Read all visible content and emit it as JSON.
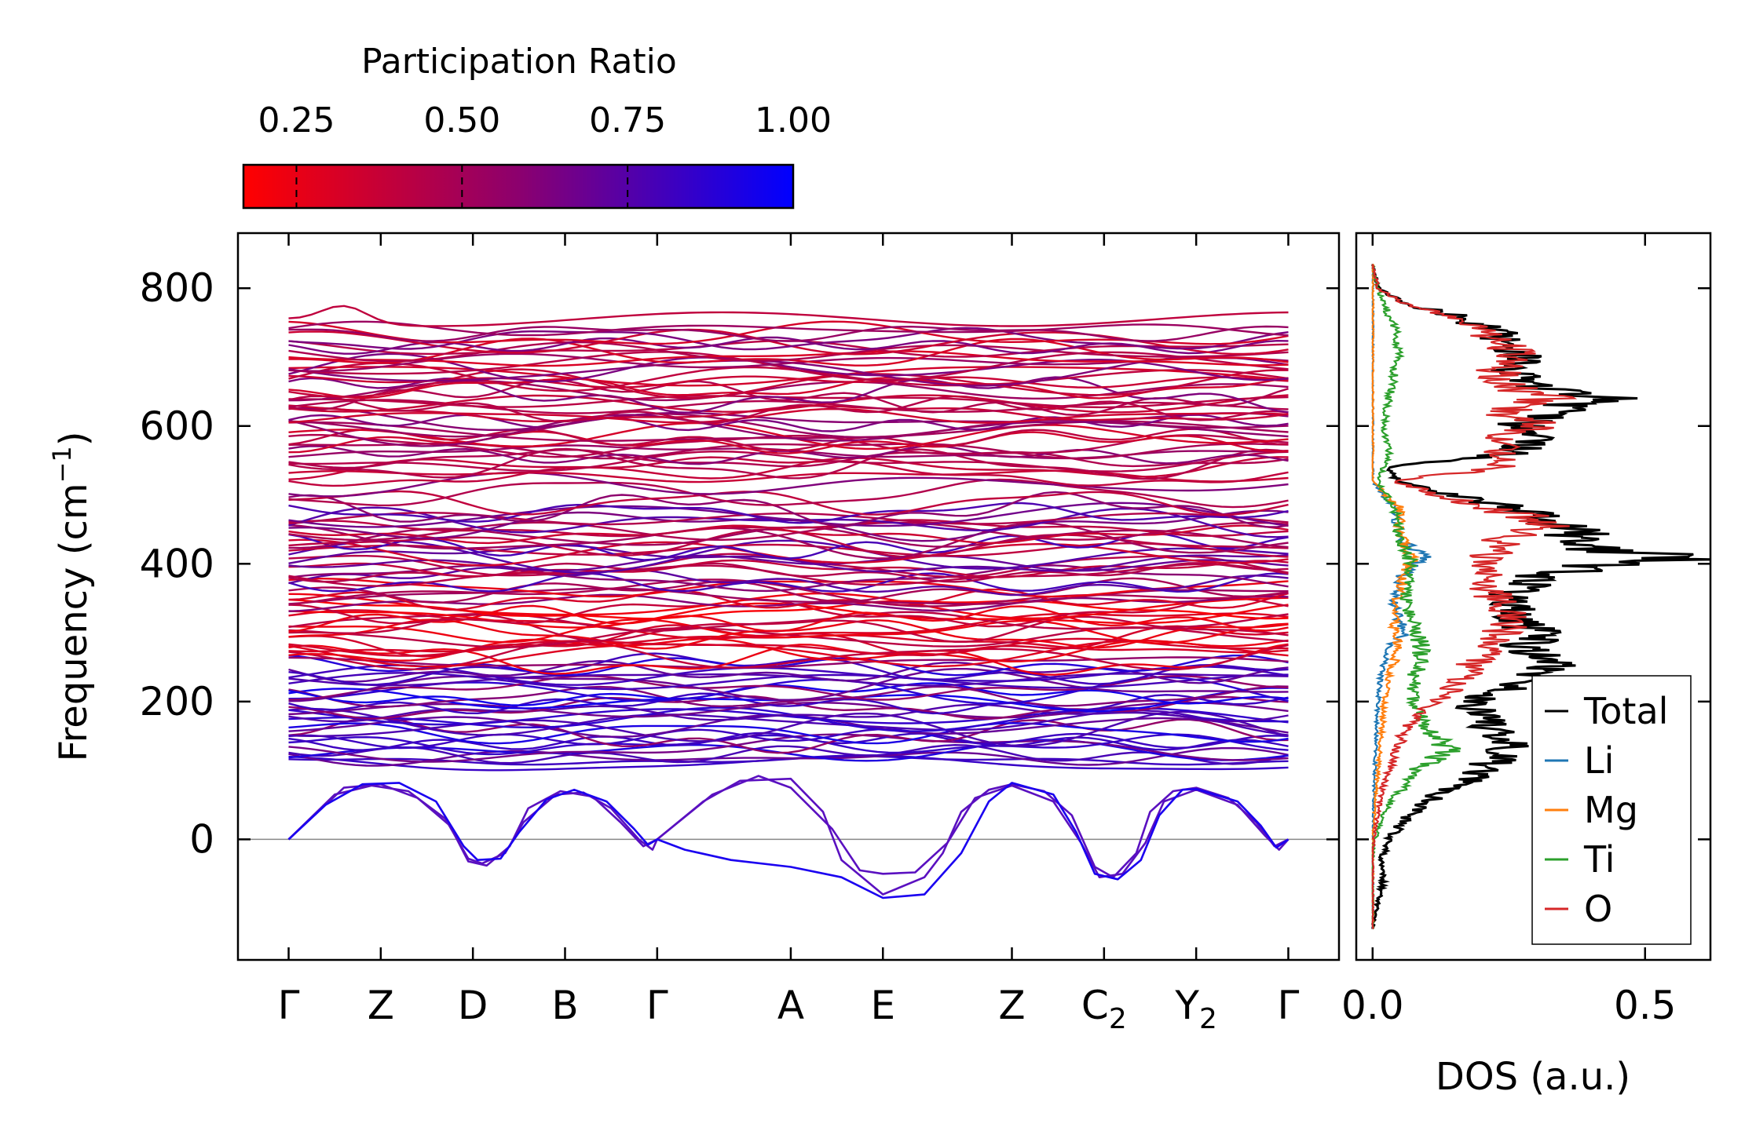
{
  "chart_data": [
    {
      "type": "colorbar",
      "title": "Participation Ratio",
      "range": [
        0.17,
        1.0
      ],
      "ticks": [
        {
          "value": 0.25,
          "label": "0.25"
        },
        {
          "value": 0.5,
          "label": "0.50"
        },
        {
          "value": 0.75,
          "label": "0.75"
        },
        {
          "value": 1.0,
          "label": "1.00"
        }
      ],
      "colors": {
        "low": "#ff0000",
        "mid": "#8c006e",
        "high": "#0000ff"
      }
    },
    {
      "type": "line",
      "title": "",
      "xlabel": "",
      "ylabel": "Frequency (cm",
      "ylabel_unit_sup": "−1",
      "ylabel_end": ")",
      "ylim": [
        -175,
        880
      ],
      "yticks": [
        0,
        200,
        400,
        600,
        800
      ],
      "zero_line": true,
      "high_symmetry_points": [
        {
          "label": "Γ",
          "sub": "",
          "x": 0
        },
        {
          "label": "Z",
          "sub": "",
          "x": 1
        },
        {
          "label": "D",
          "sub": "",
          "x": 2
        },
        {
          "label": "B",
          "sub": "",
          "x": 3
        },
        {
          "label": "Γ",
          "sub": "",
          "x": 4
        },
        {
          "label": "A",
          "sub": "",
          "x": 5.45
        },
        {
          "label": "E",
          "sub": "",
          "x": 6.45
        },
        {
          "label": "Z",
          "sub": "",
          "x": 7.85
        },
        {
          "label": "C",
          "sub": "2",
          "x": 8.85
        },
        {
          "label": "Y",
          "sub": "2",
          "x": 9.85
        },
        {
          "label": "Γ",
          "sub": "",
          "x": 10.85
        }
      ],
      "xlim": [
        -0.55,
        11.4
      ],
      "acoustic_branches": [
        {
          "name": "acoustic-1",
          "points": [
            [
              0,
              0
            ],
            [
              0.5,
              65
            ],
            [
              0.9,
              78
            ],
            [
              1.3,
              70
            ],
            [
              1.7,
              30
            ],
            [
              1.95,
              -28
            ],
            [
              2.1,
              -35
            ],
            [
              2.35,
              -20
            ],
            [
              2.55,
              25
            ],
            [
              2.9,
              65
            ],
            [
              3.2,
              68
            ],
            [
              3.5,
              45
            ],
            [
              3.8,
              0
            ],
            [
              3.95,
              -15
            ],
            [
              4.0,
              0
            ],
            [
              4.5,
              55
            ],
            [
              4.9,
              85
            ],
            [
              5.45,
              88
            ],
            [
              5.8,
              40
            ],
            [
              6.0,
              -30
            ],
            [
              6.45,
              -80
            ],
            [
              6.9,
              -55
            ],
            [
              7.1,
              -20
            ],
            [
              7.3,
              40
            ],
            [
              7.6,
              72
            ],
            [
              7.85,
              80
            ],
            [
              8.2,
              70
            ],
            [
              8.5,
              35
            ],
            [
              8.75,
              -40
            ],
            [
              8.95,
              -55
            ],
            [
              9.2,
              -20
            ],
            [
              9.35,
              40
            ],
            [
              9.6,
              70
            ],
            [
              9.85,
              75
            ],
            [
              10.2,
              60
            ],
            [
              10.5,
              25
            ],
            [
              10.7,
              -10
            ],
            [
              10.85,
              0
            ]
          ]
        },
        {
          "name": "acoustic-2",
          "points": [
            [
              0,
              0
            ],
            [
              0.6,
              75
            ],
            [
              1.0,
              80
            ],
            [
              1.4,
              60
            ],
            [
              1.75,
              20
            ],
            [
              1.95,
              -32
            ],
            [
              2.15,
              -38
            ],
            [
              2.4,
              -10
            ],
            [
              2.6,
              45
            ],
            [
              2.95,
              70
            ],
            [
              3.3,
              62
            ],
            [
              3.6,
              25
            ],
            [
              3.85,
              -10
            ],
            [
              4.0,
              0
            ],
            [
              4.6,
              65
            ],
            [
              5.1,
              92
            ],
            [
              5.45,
              75
            ],
            [
              5.9,
              15
            ],
            [
              6.2,
              -45
            ],
            [
              6.45,
              -50
            ],
            [
              6.8,
              -48
            ],
            [
              7.15,
              -5
            ],
            [
              7.45,
              60
            ],
            [
              7.85,
              78
            ],
            [
              8.3,
              55
            ],
            [
              8.6,
              -5
            ],
            [
              8.8,
              -55
            ],
            [
              9.05,
              -50
            ],
            [
              9.3,
              -5
            ],
            [
              9.5,
              55
            ],
            [
              9.85,
              72
            ],
            [
              10.3,
              50
            ],
            [
              10.6,
              5
            ],
            [
              10.75,
              -15
            ],
            [
              10.85,
              0
            ]
          ]
        },
        {
          "name": "acoustic-3",
          "points": [
            [
              0,
              0
            ],
            [
              0.4,
              50
            ],
            [
              0.8,
              80
            ],
            [
              1.2,
              82
            ],
            [
              1.6,
              55
            ],
            [
              1.9,
              -10
            ],
            [
              2.05,
              -30
            ],
            [
              2.3,
              -28
            ],
            [
              2.5,
              10
            ],
            [
              2.8,
              58
            ],
            [
              3.1,
              72
            ],
            [
              3.45,
              55
            ],
            [
              3.75,
              15
            ],
            [
              3.9,
              -8
            ],
            [
              4.0,
              0
            ],
            [
              4.3,
              -15
            ],
            [
              4.8,
              -30
            ],
            [
              5.45,
              -40
            ],
            [
              6.0,
              -55
            ],
            [
              6.45,
              -85
            ],
            [
              6.9,
              -80
            ],
            [
              7.3,
              -20
            ],
            [
              7.6,
              55
            ],
            [
              7.85,
              82
            ],
            [
              8.3,
              65
            ],
            [
              8.55,
              10
            ],
            [
              8.75,
              -50
            ],
            [
              9.0,
              -58
            ],
            [
              9.25,
              -30
            ],
            [
              9.45,
              35
            ],
            [
              9.7,
              72
            ],
            [
              9.85,
              73
            ],
            [
              10.3,
              55
            ],
            [
              10.55,
              20
            ],
            [
              10.72,
              -12
            ],
            [
              10.85,
              0
            ]
          ]
        }
      ]
    },
    {
      "type": "line",
      "title": "",
      "xlabel": "DOS (a.u.)",
      "ylabel": "",
      "xlim": [
        -0.03,
        0.62
      ],
      "xticks": [
        {
          "value": 0.0,
          "label": "0.0"
        },
        {
          "value": 0.5,
          "label": "0.5"
        }
      ],
      "ylim": [
        -175,
        880
      ],
      "legend_position": "lower-right",
      "series": [
        {
          "name": "Total",
          "color": "#000000",
          "y": [
            -130,
            -90,
            -60,
            -30,
            0,
            30,
            60,
            80,
            100,
            120,
            140,
            160,
            180,
            200,
            220,
            240,
            260,
            280,
            300,
            320,
            340,
            360,
            380,
            400,
            410,
            420,
            440,
            460,
            480,
            500,
            520,
            540,
            560,
            580,
            600,
            620,
            640,
            660,
            680,
            700,
            720,
            740,
            760,
            780,
            800,
            835
          ],
          "values": [
            0.0,
            0.01,
            0.02,
            0.015,
            0.03,
            0.06,
            0.11,
            0.16,
            0.2,
            0.23,
            0.26,
            0.22,
            0.2,
            0.18,
            0.25,
            0.31,
            0.33,
            0.28,
            0.3,
            0.27,
            0.25,
            0.26,
            0.3,
            0.43,
            0.59,
            0.42,
            0.38,
            0.33,
            0.26,
            0.14,
            0.05,
            0.03,
            0.25,
            0.3,
            0.27,
            0.32,
            0.42,
            0.28,
            0.25,
            0.27,
            0.25,
            0.22,
            0.15,
            0.05,
            0.01,
            0.0
          ]
        },
        {
          "name": "Li",
          "color": "#1f77b4",
          "y": [
            -130,
            -30,
            0,
            60,
            120,
            180,
            200,
            240,
            280,
            300,
            340,
            380,
            410,
            440,
            480,
            520,
            560,
            600,
            640,
            680,
            720,
            760,
            800,
            835
          ],
          "values": [
            0.0,
            0.0,
            0.0,
            0.002,
            0.005,
            0.008,
            0.01,
            0.015,
            0.03,
            0.06,
            0.04,
            0.05,
            0.09,
            0.05,
            0.04,
            0.0,
            0.0,
            0.0,
            0.0,
            0.0,
            0.0,
            0.0,
            0.0,
            0.0
          ]
        },
        {
          "name": "Mg",
          "color": "#ff7f0e",
          "y": [
            -130,
            -30,
            0,
            60,
            100,
            140,
            180,
            200,
            240,
            280,
            300,
            340,
            380,
            410,
            440,
            480,
            520,
            560,
            600,
            640,
            680,
            720,
            760,
            800,
            835
          ],
          "values": [
            0.0,
            0.0,
            0.0,
            0.005,
            0.01,
            0.015,
            0.02,
            0.02,
            0.03,
            0.05,
            0.04,
            0.04,
            0.06,
            0.07,
            0.05,
            0.05,
            0.0,
            0.0,
            0.0,
            0.0,
            0.0,
            0.0,
            0.0,
            0.0,
            0.0
          ]
        },
        {
          "name": "Ti",
          "color": "#2ca02c",
          "y": [
            -130,
            -30,
            0,
            40,
            70,
            100,
            130,
            160,
            200,
            240,
            280,
            320,
            360,
            400,
            440,
            480,
            520,
            560,
            600,
            640,
            680,
            720,
            760,
            800,
            835
          ],
          "values": [
            0.0,
            0.0,
            0.005,
            0.02,
            0.05,
            0.08,
            0.14,
            0.1,
            0.07,
            0.08,
            0.09,
            0.07,
            0.06,
            0.07,
            0.05,
            0.04,
            0.01,
            0.03,
            0.02,
            0.03,
            0.04,
            0.05,
            0.03,
            0.01,
            0.0
          ]
        },
        {
          "name": "O",
          "color": "#d62728",
          "y": [
            -130,
            -30,
            0,
            40,
            80,
            120,
            160,
            200,
            240,
            280,
            320,
            360,
            400,
            440,
            460,
            480,
            500,
            520,
            540,
            560,
            580,
            600,
            620,
            640,
            660,
            680,
            700,
            720,
            740,
            760,
            780,
            800,
            835
          ],
          "values": [
            0.0,
            0.0,
            0.002,
            0.01,
            0.02,
            0.04,
            0.06,
            0.12,
            0.17,
            0.22,
            0.25,
            0.22,
            0.2,
            0.25,
            0.33,
            0.22,
            0.12,
            0.04,
            0.23,
            0.25,
            0.22,
            0.3,
            0.24,
            0.32,
            0.24,
            0.23,
            0.26,
            0.24,
            0.2,
            0.13,
            0.05,
            0.01,
            0.0
          ]
        }
      ]
    }
  ]
}
